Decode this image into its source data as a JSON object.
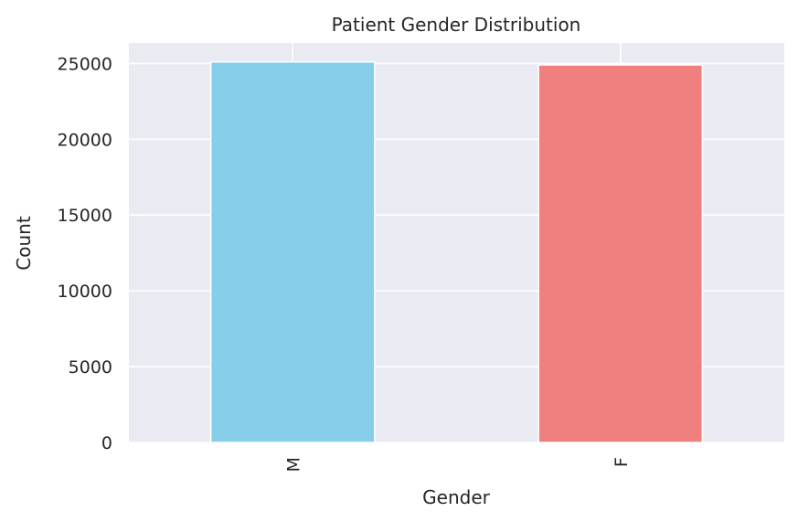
{
  "chart_data": {
    "type": "bar",
    "title": "Patient Gender Distribution",
    "xlabel": "Gender",
    "ylabel": "Count",
    "categories": [
      "M",
      "F"
    ],
    "values": [
      25100,
      24900
    ],
    "ylim": [
      0,
      26350
    ],
    "yticks": [
      0,
      5000,
      10000,
      15000,
      20000,
      25000
    ],
    "ytick_labels": [
      "0",
      "5000",
      "10000",
      "15000",
      "20000",
      "25000"
    ],
    "grid": true,
    "legend": "none",
    "colors": [
      "#87ceeb",
      "#f08080"
    ],
    "background": "#eaeaf2",
    "gridline_color": "#ffffff"
  }
}
